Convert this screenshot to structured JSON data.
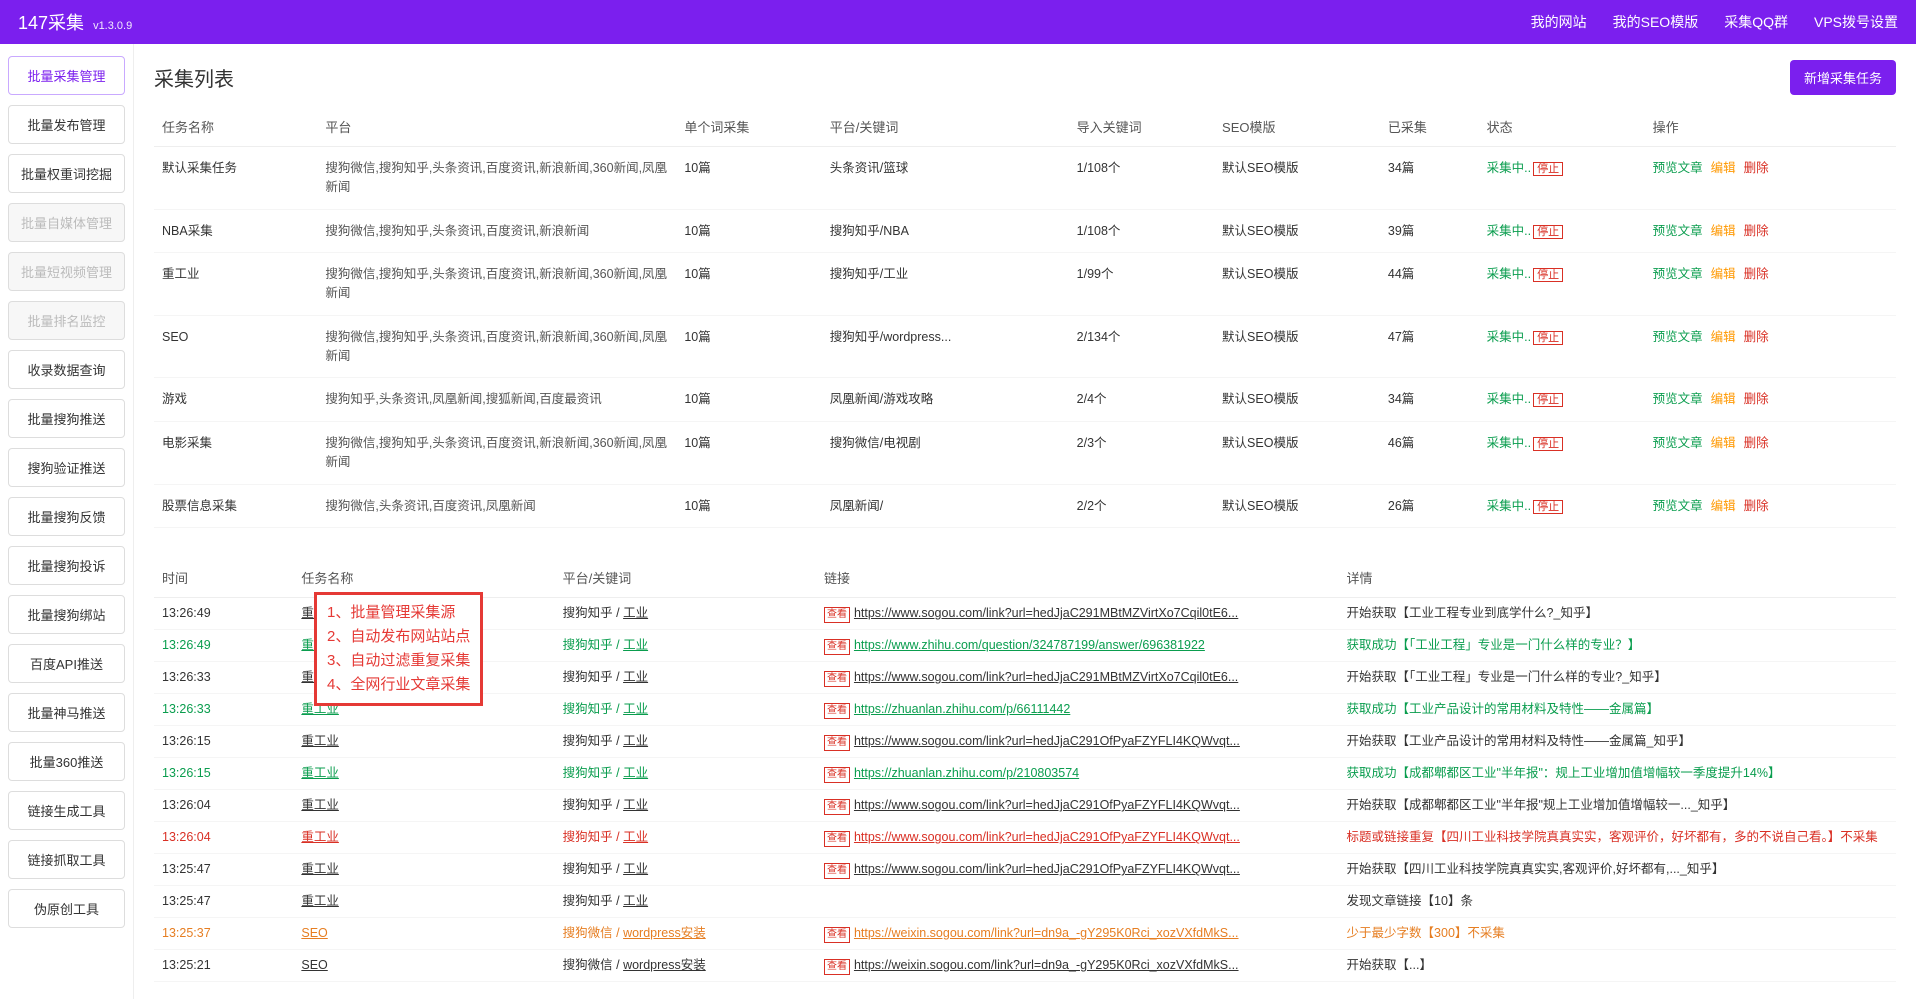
{
  "brand": {
    "name": "147采集",
    "ver": "v1.3.0.9"
  },
  "topnav": [
    "我的网站",
    "我的SEO模版",
    "采集QQ群",
    "VPS拨号设置"
  ],
  "sidebar": [
    {
      "label": "批量采集管理",
      "state": "active"
    },
    {
      "label": "批量发布管理",
      "state": ""
    },
    {
      "label": "批量权重词挖掘",
      "state": ""
    },
    {
      "label": "批量自媒体管理",
      "state": "disabled"
    },
    {
      "label": "批量短视频管理",
      "state": "disabled"
    },
    {
      "label": "批量排名监控",
      "state": "disabled"
    },
    {
      "label": "收录数据查询",
      "state": ""
    },
    {
      "label": "批量搜狗推送",
      "state": ""
    },
    {
      "label": "搜狗验证推送",
      "state": ""
    },
    {
      "label": "批量搜狗反馈",
      "state": ""
    },
    {
      "label": "批量搜狗投诉",
      "state": ""
    },
    {
      "label": "批量搜狗绑站",
      "state": ""
    },
    {
      "label": "百度API推送",
      "state": ""
    },
    {
      "label": "批量神马推送",
      "state": ""
    },
    {
      "label": "批量360推送",
      "state": ""
    },
    {
      "label": "链接生成工具",
      "state": ""
    },
    {
      "label": "链接抓取工具",
      "state": ""
    },
    {
      "label": "伪原创工具",
      "state": ""
    }
  ],
  "listTitle": "采集列表",
  "newBtn": "新增采集任务",
  "cols": [
    "任务名称",
    "平台",
    "单个词采集",
    "平台/关键词",
    "导入关键词",
    "SEO模版",
    "已采集",
    "状态",
    "操作"
  ],
  "status": {
    "running": "采集中..",
    "stop": "停止"
  },
  "ops": {
    "preview": "预览文章",
    "edit": "编辑",
    "del": "删除"
  },
  "tasks": [
    {
      "name": "默认采集任务",
      "plat": "搜狗微信,搜狗知乎,头条资讯,百度资讯,新浪新闻,360新闻,凤凰新闻",
      "single": "10篇",
      "pk": "头条资讯/篮球",
      "imp": "1/108个",
      "tpl": "默认SEO模版",
      "cnt": "34篇"
    },
    {
      "name": "NBA采集",
      "plat": "搜狗微信,搜狗知乎,头条资讯,百度资讯,新浪新闻",
      "single": "10篇",
      "pk": "搜狗知乎/NBA",
      "imp": "1/108个",
      "tpl": "默认SEO模版",
      "cnt": "39篇"
    },
    {
      "name": "重工业",
      "plat": "搜狗微信,搜狗知乎,头条资讯,百度资讯,新浪新闻,360新闻,凤凰新闻",
      "single": "10篇",
      "pk": "搜狗知乎/工业",
      "imp": "1/99个",
      "tpl": "默认SEO模版",
      "cnt": "44篇"
    },
    {
      "name": "SEO",
      "plat": "搜狗微信,搜狗知乎,头条资讯,百度资讯,新浪新闻,360新闻,凤凰新闻",
      "single": "10篇",
      "pk": "搜狗知乎/wordpress...",
      "imp": "2/134个",
      "tpl": "默认SEO模版",
      "cnt": "47篇"
    },
    {
      "name": "游戏",
      "plat": "搜狗知乎,头条资讯,凤凰新闻,搜狐新闻,百度最资讯",
      "single": "10篇",
      "pk": "凤凰新闻/游戏攻略",
      "imp": "2/4个",
      "tpl": "默认SEO模版",
      "cnt": "34篇"
    },
    {
      "name": "电影采集",
      "plat": "搜狗微信,搜狗知乎,头条资讯,百度资讯,新浪新闻,360新闻,凤凰新闻",
      "single": "10篇",
      "pk": "搜狗微信/电视剧",
      "imp": "2/3个",
      "tpl": "默认SEO模版",
      "cnt": "46篇"
    },
    {
      "name": "股票信息采集",
      "plat": "搜狗微信,头条资讯,百度资讯,凤凰新闻",
      "single": "10篇",
      "pk": "凤凰新闻/",
      "imp": "2/2个",
      "tpl": "默认SEO模版",
      "cnt": "26篇"
    }
  ],
  "logCols": [
    "时间",
    "任务名称",
    "平台/关键词",
    "链接",
    "详情"
  ],
  "tagText": "查看",
  "callout": {
    "l1": "1、批量管理采集源",
    "l2": "2、自动发布网站站点",
    "l3": "3、自动过滤重复采集",
    "l4": "4、全网行业文章采集"
  },
  "logs": [
    {
      "t": "13:26:49",
      "task": "重工业",
      "pk": "搜狗知乎 / 工业",
      "url": "https://www.sogou.com/link?url=hedJjaC291MBtMZVirtXo7Cqil0tE6...",
      "det": "开始获取【工业工程专业到底学什么?_知乎】",
      "cls": ""
    },
    {
      "t": "13:26:49",
      "task": "重工业",
      "pk": "搜狗知乎 / 工业",
      "url": "https://www.zhihu.com/question/324787199/answer/696381922",
      "det": "获取成功【「工业工程」专业是一门什么样的专业？】",
      "cls": "green"
    },
    {
      "t": "13:26:33",
      "task": "重工业",
      "pk": "搜狗知乎 / 工业",
      "url": "https://www.sogou.com/link?url=hedJjaC291MBtMZVirtXo7Cqil0tE6...",
      "det": "开始获取【「工业工程」专业是一门什么样的专业?_知乎】",
      "cls": ""
    },
    {
      "t": "13:26:33",
      "task": "重工业",
      "pk": "搜狗知乎 / 工业",
      "url": "https://zhuanlan.zhihu.com/p/66111442",
      "det": "获取成功【工业产品设计的常用材料及特性——金属篇】",
      "cls": "green"
    },
    {
      "t": "13:26:15",
      "task": "重工业",
      "pk": "搜狗知乎 / 工业",
      "url": "https://www.sogou.com/link?url=hedJjaC291OfPyaFZYFLI4KQWvqt...",
      "det": "开始获取【工业产品设计的常用材料及特性——金属篇_知乎】",
      "cls": ""
    },
    {
      "t": "13:26:15",
      "task": "重工业",
      "pk": "搜狗知乎 / 工业",
      "url": "https://zhuanlan.zhihu.com/p/210803574",
      "det": "获取成功【成都郫都区工业\"半年报\"：规上工业增加值增幅较一季度提升14%】",
      "cls": "green"
    },
    {
      "t": "13:26:04",
      "task": "重工业",
      "pk": "搜狗知乎 / 工业",
      "url": "https://www.sogou.com/link?url=hedJjaC291OfPyaFZYFLI4KQWvqt...",
      "det": "开始获取【成都郫都区工业\"半年报\"规上工业增加值增幅较一..._知乎】",
      "cls": ""
    },
    {
      "t": "13:26:04",
      "task": "重工业",
      "pk": "搜狗知乎 / 工业",
      "url": "https://www.sogou.com/link?url=hedJjaC291OfPyaFZYFLI4KQWvqt...",
      "det": "标题或链接重复【四川工业科技学院真真实实，客观评价，好坏都有，多的不说自己看。】不采集",
      "cls": "red"
    },
    {
      "t": "13:25:47",
      "task": "重工业",
      "pk": "搜狗知乎 / 工业",
      "url": "https://www.sogou.com/link?url=hedJjaC291OfPyaFZYFLI4KQWvqt...",
      "det": "开始获取【四川工业科技学院真真实实,客观评价,好坏都有,..._知乎】",
      "cls": ""
    },
    {
      "t": "13:25:47",
      "task": "重工业",
      "pk": "搜狗知乎 / 工业",
      "url": "",
      "det": "发现文章链接【10】条",
      "cls": ""
    },
    {
      "t": "13:25:37",
      "task": "SEO",
      "pk": "搜狗微信 / wordpress安装",
      "url": "https://weixin.sogou.com/link?url=dn9a_-gY295K0Rci_xozVXfdMkS...",
      "det": "少于最少字数【300】不采集",
      "cls": "orange"
    },
    {
      "t": "13:25:21",
      "task": "SEO",
      "pk": "搜狗微信 / wordpress安装",
      "url": "https://weixin.sogou.com/link?url=dn9a_-gY295K0Rci_xozVXfdMkS...",
      "det": "开始获取【...】",
      "cls": ""
    }
  ]
}
